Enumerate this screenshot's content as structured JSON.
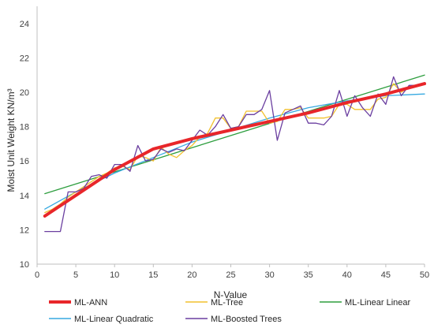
{
  "chart_data": {
    "type": "line",
    "title": "",
    "xlabel": "N-Value",
    "ylabel": "Moist Unit Weight KN/m³",
    "xlim": [
      0,
      50
    ],
    "ylim": [
      10,
      25
    ],
    "xticks": [
      0,
      5,
      10,
      15,
      20,
      25,
      30,
      35,
      40,
      45,
      50
    ],
    "yticks": [
      10,
      12,
      14,
      16,
      18,
      20,
      22,
      24
    ],
    "grid": false,
    "legend_position": "bottom",
    "series": [
      {
        "name": "ML-ANN",
        "color": "#e8262a",
        "x": [
          1,
          5,
          10,
          15,
          20,
          25,
          30,
          35,
          40,
          45,
          50
        ],
        "y": [
          12.8,
          14.0,
          15.5,
          16.7,
          17.3,
          17.8,
          18.3,
          18.8,
          19.4,
          19.9,
          20.5
        ]
      },
      {
        "name": "ML-Tree",
        "color": "#f2c12e",
        "x": [
          1,
          2,
          3,
          4,
          5,
          6,
          7,
          8,
          9,
          10,
          11,
          12,
          13,
          14,
          15,
          16,
          17,
          18,
          19,
          20,
          21,
          22,
          23,
          24,
          25,
          26,
          27,
          28,
          29,
          30,
          31,
          32,
          33,
          34,
          35,
          36,
          37,
          38,
          39,
          40,
          41,
          42,
          43,
          44,
          45,
          46,
          47,
          48,
          49,
          50
        ],
        "y": [
          13.0,
          13.2,
          13.5,
          13.9,
          14.2,
          14.5,
          14.8,
          15.1,
          15.3,
          15.6,
          15.7,
          15.5,
          16.3,
          16.2,
          16.0,
          16.8,
          16.4,
          16.2,
          16.6,
          16.9,
          17.4,
          17.6,
          18.5,
          18.5,
          17.9,
          18.0,
          18.9,
          18.9,
          18.9,
          18.2,
          18.3,
          19.0,
          19.0,
          19.1,
          18.5,
          18.5,
          18.5,
          18.6,
          19.3,
          19.3,
          19.0,
          19.0,
          19.0,
          19.6,
          19.7,
          20.5,
          20.0,
          20.3,
          20.4,
          20.5
        ]
      },
      {
        "name": "ML-Linear Linear",
        "color": "#2e9e3f",
        "x": [
          1,
          50
        ],
        "y": [
          14.1,
          21.0
        ]
      },
      {
        "name": "ML-Linear Quadratic",
        "color": "#36a9e1",
        "x": [
          1,
          5,
          10,
          15,
          20,
          25,
          30,
          35,
          40,
          45,
          50
        ],
        "y": [
          13.2,
          14.2,
          15.3,
          16.2,
          17.1,
          17.8,
          18.5,
          19.1,
          19.5,
          19.8,
          19.9
        ]
      },
      {
        "name": "ML-Boosted Trees",
        "color": "#6b3fa0",
        "x": [
          1,
          2,
          3,
          4,
          5,
          6,
          7,
          8,
          9,
          10,
          11,
          12,
          13,
          14,
          15,
          16,
          17,
          18,
          19,
          20,
          21,
          22,
          23,
          24,
          25,
          26,
          27,
          28,
          29,
          30,
          31,
          32,
          33,
          34,
          35,
          36,
          37,
          38,
          39,
          40,
          41,
          42,
          43,
          44,
          45,
          46,
          47,
          48,
          49,
          50
        ],
        "y": [
          11.9,
          11.9,
          11.9,
          14.2,
          14.2,
          14.4,
          15.1,
          15.2,
          15.0,
          15.8,
          15.8,
          15.4,
          16.9,
          16.0,
          16.1,
          16.7,
          16.5,
          16.7,
          16.6,
          17.2,
          17.8,
          17.5,
          18.0,
          18.7,
          17.9,
          18.0,
          18.7,
          18.7,
          19.0,
          20.1,
          17.2,
          18.8,
          19.0,
          19.2,
          18.2,
          18.2,
          18.1,
          18.6,
          20.1,
          18.6,
          19.8,
          19.1,
          18.6,
          19.9,
          19.3,
          20.9,
          19.8,
          20.4,
          20.4,
          20.5
        ]
      }
    ]
  }
}
